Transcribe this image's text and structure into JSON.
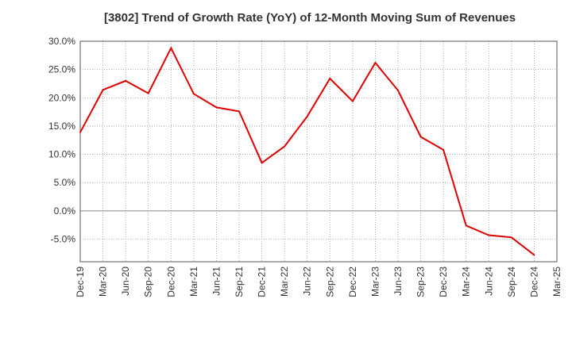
{
  "chart_data": {
    "type": "line",
    "title": "[3802]  Trend of Growth Rate (YoY) of 12-Month Moving Sum of Revenues",
    "xlabel": "",
    "ylabel": "",
    "x_tick_labels": [
      "Dec-19",
      "Mar-20",
      "Jun-20",
      "Sep-20",
      "Dec-20",
      "Mar-21",
      "Jun-21",
      "Sep-21",
      "Dec-21",
      "Mar-22",
      "Jun-22",
      "Sep-22",
      "Dec-22",
      "Mar-23",
      "Jun-23",
      "Sep-23",
      "Dec-23",
      "Mar-24",
      "Jun-24",
      "Sep-24",
      "Dec-24",
      "Mar-25"
    ],
    "y_tick_labels": [
      "30.0%",
      "25.0%",
      "20.0%",
      "15.0%",
      "10.0%",
      "5.0%",
      "0.0%",
      "-5.0%"
    ],
    "y_ticks": [
      30,
      25,
      20,
      15,
      10,
      5,
      0,
      -5
    ],
    "ylim": [
      -9,
      30
    ],
    "grid": true,
    "series": [
      {
        "color": "#dd0000",
        "x": [
          "Dec-19",
          "Mar-20",
          "Jun-20",
          "Sep-20",
          "Dec-20",
          "Mar-21",
          "Jun-21",
          "Sep-21",
          "Dec-21",
          "Mar-22",
          "Jun-22",
          "Sep-22",
          "Dec-22",
          "Mar-23",
          "Jun-23",
          "Sep-23",
          "Dec-23",
          "Mar-24",
          "Jun-24",
          "Sep-24",
          "Dec-24"
        ],
        "values": [
          13.9,
          21.4,
          23.0,
          20.8,
          28.8,
          20.7,
          18.3,
          17.6,
          8.5,
          11.4,
          16.7,
          23.4,
          19.4,
          26.2,
          21.3,
          13.1,
          10.8,
          -2.6,
          -4.3,
          -4.7,
          -7.8
        ]
      }
    ]
  }
}
